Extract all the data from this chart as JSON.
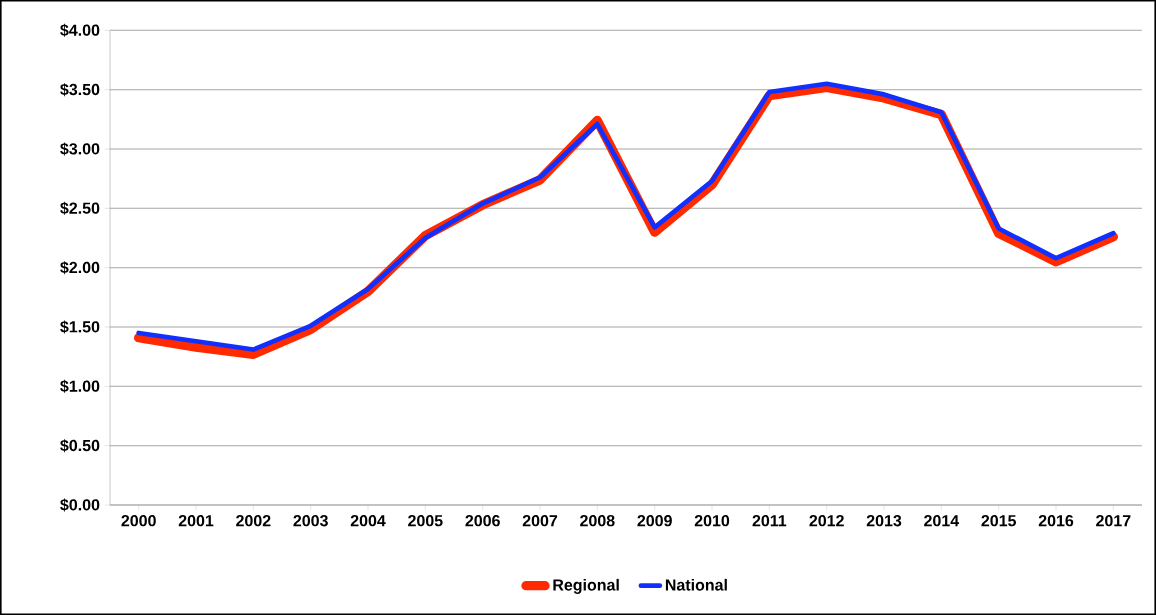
{
  "chart_data": {
    "type": "line",
    "categories": [
      "2000",
      "2001",
      "2002",
      "2003",
      "2004",
      "2005",
      "2006",
      "2007",
      "2008",
      "2009",
      "2010",
      "2011",
      "2012",
      "2013",
      "2014",
      "2015",
      "2016",
      "2017"
    ],
    "series": [
      {
        "name": "Regional",
        "color": "#ff2a00",
        "values": [
          1.41,
          1.33,
          1.27,
          1.48,
          1.8,
          2.27,
          2.53,
          2.74,
          3.24,
          2.3,
          2.7,
          3.45,
          3.52,
          3.43,
          3.29,
          2.29,
          2.05,
          2.26
        ]
      },
      {
        "name": "National",
        "color": "#1030ff",
        "values": [
          1.45,
          1.38,
          1.31,
          1.51,
          1.82,
          2.25,
          2.54,
          2.76,
          3.21,
          2.34,
          2.73,
          3.48,
          3.55,
          3.46,
          3.31,
          2.33,
          2.08,
          2.29
        ]
      }
    ],
    "ylim": [
      0,
      4
    ],
    "yticks": [
      {
        "value": 0,
        "label": "$0.00"
      },
      {
        "value": 0.5,
        "label": "$0.50"
      },
      {
        "value": 1,
        "label": "$1.00"
      },
      {
        "value": 1.5,
        "label": "$1.50"
      },
      {
        "value": 2,
        "label": "$2.00"
      },
      {
        "value": 2.5,
        "label": "$2.50"
      },
      {
        "value": 3,
        "label": "$3.00"
      },
      {
        "value": 3.5,
        "label": "$3.50"
      },
      {
        "value": 4,
        "label": "$4.00"
      }
    ],
    "grid": "y",
    "legend": "bottom",
    "marker": "none",
    "line_style": "solid"
  }
}
